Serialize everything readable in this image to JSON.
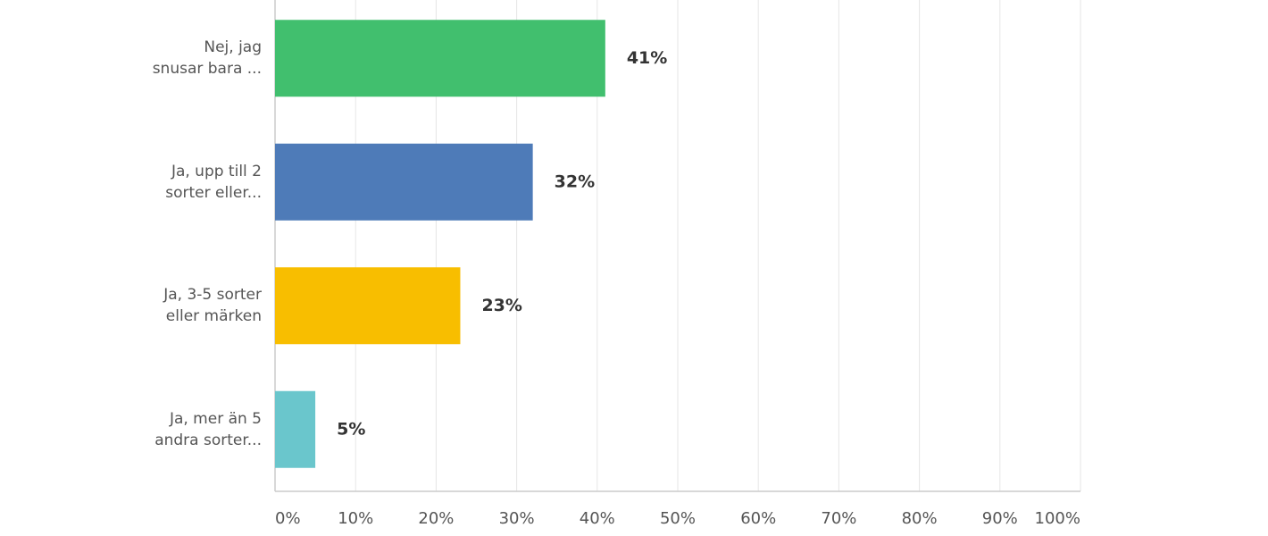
{
  "chart_data": {
    "type": "barh",
    "categories": [
      "Nej, jag\nsnusar bara ...",
      "Ja, upp till 2\nsorter eller...",
      "Ja, 3-5 sorter\neller märken",
      "Ja, mer än 5\nandra sorter..."
    ],
    "values": [
      41,
      32,
      23,
      5
    ],
    "value_labels": [
      "41%",
      "32%",
      "23%",
      "5%"
    ],
    "colors": [
      "#41bf6e",
      "#4e7bb8",
      "#f8be00",
      "#6ac6cc"
    ],
    "xlim": [
      0,
      100
    ],
    "xticks": [
      {
        "value": 0,
        "label": "0%"
      },
      {
        "value": 10,
        "label": "10%"
      },
      {
        "value": 20,
        "label": "20%"
      },
      {
        "value": 30,
        "label": "30%"
      },
      {
        "value": 40,
        "label": "40%"
      },
      {
        "value": 50,
        "label": "50%"
      },
      {
        "value": 60,
        "label": "60%"
      },
      {
        "value": 70,
        "label": "70%"
      },
      {
        "value": 80,
        "label": "80%"
      },
      {
        "value": 90,
        "label": "90%"
      },
      {
        "value": 100,
        "label": "100%"
      }
    ],
    "grid": true
  }
}
